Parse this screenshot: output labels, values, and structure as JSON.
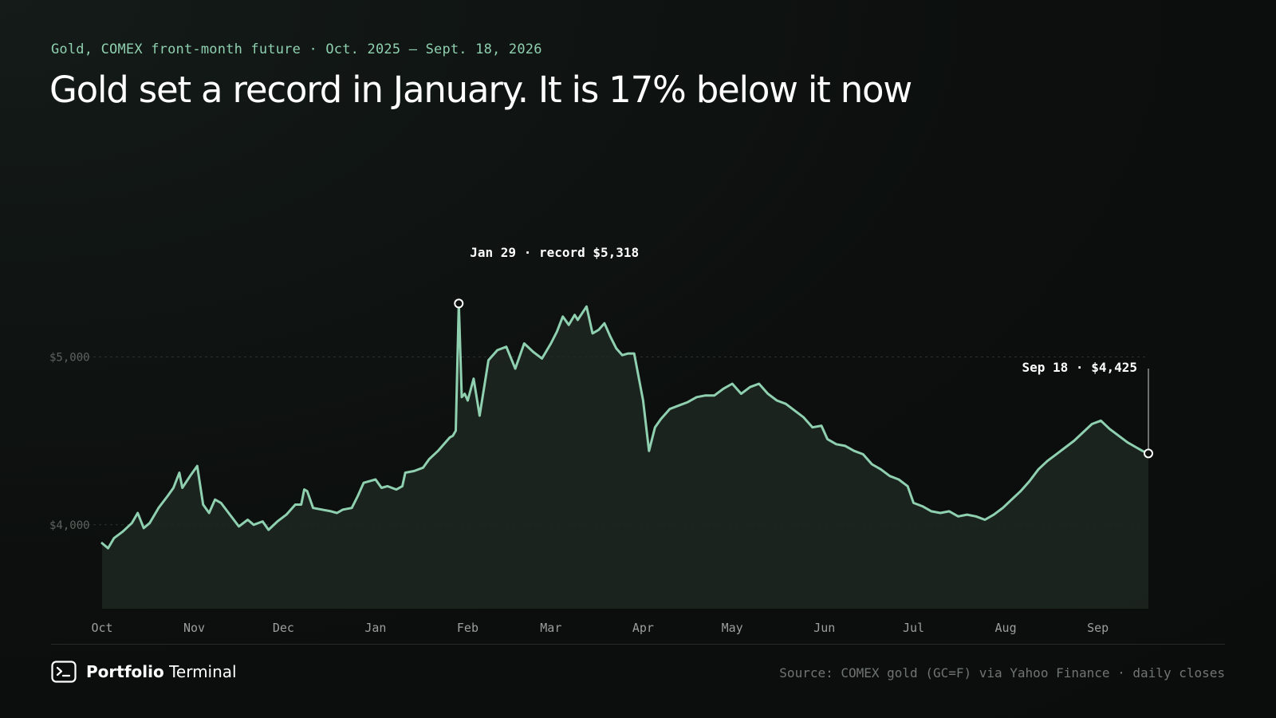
{
  "header": {
    "subtitle": "Gold, COMEX front-month future · Oct. 2025 – Sept. 18, 2026",
    "title": "Gold set a record in January. It is 17% below it now"
  },
  "footer": {
    "brand_strong": "Portfolio",
    "brand_light": "Terminal",
    "brand_icon": "terminal-prompt-icon",
    "source": "Source: COMEX gold (GC=F) via Yahoo Finance · daily closes"
  },
  "colors": {
    "background": "#0c0f0e",
    "line": "#8fd0b0",
    "area_fill": "#1e2722",
    "subtitle": "#8fd0b0",
    "axis_text": "#9a9f9c",
    "y_tick_text": "#5d635f",
    "grid": "#2c3330",
    "annotation_text": "#ffffff"
  },
  "chart_data": {
    "type": "area",
    "title": "Gold set a record in January. It is 17% below it now",
    "subtitle": "Gold, COMEX front-month future · Oct. 2025 – Sept. 18, 2026",
    "xlabel": "",
    "ylabel": "",
    "x_range": [
      "2025-10-01",
      "2026-09-18"
    ],
    "ylim": [
      3500,
      5700
    ],
    "grid": true,
    "legend": "none",
    "x_ticks": [
      {
        "label": "Oct",
        "date": "2025-10-01"
      },
      {
        "label": "Nov",
        "date": "2025-11-01"
      },
      {
        "label": "Dec",
        "date": "2025-12-01"
      },
      {
        "label": "Jan",
        "date": "2026-01-01"
      },
      {
        "label": "Feb",
        "date": "2026-02-01"
      },
      {
        "label": "Mar",
        "date": "2026-03-01"
      },
      {
        "label": "Apr",
        "date": "2026-04-01"
      },
      {
        "label": "May",
        "date": "2026-05-01"
      },
      {
        "label": "Jun",
        "date": "2026-06-01"
      },
      {
        "label": "Jul",
        "date": "2026-07-01"
      },
      {
        "label": "Aug",
        "date": "2026-08-01"
      },
      {
        "label": "Sep",
        "date": "2026-09-01"
      }
    ],
    "y_ticks": [
      {
        "label": "$4,000",
        "value": 4000
      },
      {
        "label": "$5,000",
        "value": 5000
      }
    ],
    "annotations": [
      {
        "date": "2026-01-29",
        "value": 5318,
        "label": "Jan 29 · record $5,318",
        "anchor": "right"
      },
      {
        "date": "2026-09-18",
        "value": 4425,
        "label": "Sep 18 · $4,425",
        "anchor": "left"
      }
    ],
    "series": [
      {
        "points": [
          [
            "2025-10-01",
            3890
          ],
          [
            "2025-10-03",
            3860
          ],
          [
            "2025-10-05",
            3920
          ],
          [
            "2025-10-08",
            3960
          ],
          [
            "2025-10-11",
            4010
          ],
          [
            "2025-10-13",
            4070
          ],
          [
            "2025-10-15",
            3980
          ],
          [
            "2025-10-17",
            4010
          ],
          [
            "2025-10-20",
            4100
          ],
          [
            "2025-10-23",
            4170
          ],
          [
            "2025-10-25",
            4220
          ],
          [
            "2025-10-27",
            4310
          ],
          [
            "2025-10-28",
            4220
          ],
          [
            "2025-10-31",
            4300
          ],
          [
            "2025-11-02",
            4350
          ],
          [
            "2025-11-04",
            4120
          ],
          [
            "2025-11-06",
            4070
          ],
          [
            "2025-11-08",
            4150
          ],
          [
            "2025-11-10",
            4130
          ],
          [
            "2025-11-13",
            4060
          ],
          [
            "2025-11-16",
            3990
          ],
          [
            "2025-11-19",
            4030
          ],
          [
            "2025-11-21",
            4000
          ],
          [
            "2025-11-24",
            4020
          ],
          [
            "2025-11-26",
            3970
          ],
          [
            "2025-11-29",
            4020
          ],
          [
            "2025-12-02",
            4060
          ],
          [
            "2025-12-05",
            4120
          ],
          [
            "2025-12-07",
            4120
          ],
          [
            "2025-12-08",
            4210
          ],
          [
            "2025-12-09",
            4200
          ],
          [
            "2025-12-11",
            4100
          ],
          [
            "2025-12-14",
            4090
          ],
          [
            "2025-12-17",
            4080
          ],
          [
            "2025-12-19",
            4070
          ],
          [
            "2025-12-21",
            4090
          ],
          [
            "2025-12-24",
            4100
          ],
          [
            "2025-12-26",
            4170
          ],
          [
            "2025-12-28",
            4250
          ],
          [
            "2026-01-01",
            4270
          ],
          [
            "2026-01-03",
            4220
          ],
          [
            "2026-01-05",
            4230
          ],
          [
            "2026-01-08",
            4210
          ],
          [
            "2026-01-10",
            4230
          ],
          [
            "2026-01-11",
            4310
          ],
          [
            "2026-01-14",
            4320
          ],
          [
            "2026-01-17",
            4340
          ],
          [
            "2026-01-19",
            4390
          ],
          [
            "2026-01-22",
            4440
          ],
          [
            "2026-01-24",
            4480
          ],
          [
            "2026-01-26",
            4520
          ],
          [
            "2026-01-27",
            4530
          ],
          [
            "2026-01-28",
            4560
          ],
          [
            "2026-01-29",
            5318
          ],
          [
            "2026-01-30",
            4760
          ],
          [
            "2026-01-31",
            4780
          ],
          [
            "2026-02-01",
            4740
          ],
          [
            "2026-02-03",
            4870
          ],
          [
            "2026-02-05",
            4650
          ],
          [
            "2026-02-08",
            4980
          ],
          [
            "2026-02-11",
            5040
          ],
          [
            "2026-02-14",
            5060
          ],
          [
            "2026-02-17",
            4930
          ],
          [
            "2026-02-20",
            5080
          ],
          [
            "2026-02-23",
            5030
          ],
          [
            "2026-02-26",
            4990
          ],
          [
            "2026-03-01",
            5080
          ],
          [
            "2026-03-03",
            5150
          ],
          [
            "2026-03-05",
            5240
          ],
          [
            "2026-03-07",
            5190
          ],
          [
            "2026-03-09",
            5250
          ],
          [
            "2026-03-10",
            5220
          ],
          [
            "2026-03-13",
            5300
          ],
          [
            "2026-03-15",
            5140
          ],
          [
            "2026-03-17",
            5160
          ],
          [
            "2026-03-19",
            5200
          ],
          [
            "2026-03-21",
            5120
          ],
          [
            "2026-03-23",
            5050
          ],
          [
            "2026-03-25",
            5010
          ],
          [
            "2026-03-27",
            5020
          ],
          [
            "2026-03-29",
            5020
          ],
          [
            "2026-04-01",
            4740
          ],
          [
            "2026-04-03",
            4440
          ],
          [
            "2026-04-05",
            4580
          ],
          [
            "2026-04-07",
            4630
          ],
          [
            "2026-04-10",
            4690
          ],
          [
            "2026-04-13",
            4710
          ],
          [
            "2026-04-16",
            4730
          ],
          [
            "2026-04-19",
            4760
          ],
          [
            "2026-04-22",
            4770
          ],
          [
            "2026-04-25",
            4770
          ],
          [
            "2026-04-28",
            4810
          ],
          [
            "2026-05-01",
            4840
          ],
          [
            "2026-05-04",
            4780
          ],
          [
            "2026-05-07",
            4820
          ],
          [
            "2026-05-10",
            4840
          ],
          [
            "2026-05-13",
            4780
          ],
          [
            "2026-05-16",
            4740
          ],
          [
            "2026-05-19",
            4720
          ],
          [
            "2026-05-22",
            4680
          ],
          [
            "2026-05-25",
            4640
          ],
          [
            "2026-05-28",
            4580
          ],
          [
            "2026-05-31",
            4590
          ],
          [
            "2026-06-02",
            4510
          ],
          [
            "2026-06-05",
            4480
          ],
          [
            "2026-06-08",
            4470
          ],
          [
            "2026-06-11",
            4440
          ],
          [
            "2026-06-14",
            4420
          ],
          [
            "2026-06-17",
            4360
          ],
          [
            "2026-06-20",
            4330
          ],
          [
            "2026-06-23",
            4290
          ],
          [
            "2026-06-26",
            4270
          ],
          [
            "2026-06-29",
            4230
          ],
          [
            "2026-07-01",
            4130
          ],
          [
            "2026-07-04",
            4110
          ],
          [
            "2026-07-07",
            4080
          ],
          [
            "2026-07-10",
            4070
          ],
          [
            "2026-07-13",
            4080
          ],
          [
            "2026-07-16",
            4050
          ],
          [
            "2026-07-19",
            4060
          ],
          [
            "2026-07-22",
            4050
          ],
          [
            "2026-07-25",
            4030
          ],
          [
            "2026-07-28",
            4060
          ],
          [
            "2026-07-31",
            4100
          ],
          [
            "2026-08-03",
            4150
          ],
          [
            "2026-08-06",
            4200
          ],
          [
            "2026-08-09",
            4260
          ],
          [
            "2026-08-12",
            4330
          ],
          [
            "2026-08-15",
            4380
          ],
          [
            "2026-08-18",
            4420
          ],
          [
            "2026-08-21",
            4460
          ],
          [
            "2026-08-24",
            4500
          ],
          [
            "2026-08-27",
            4550
          ],
          [
            "2026-08-30",
            4600
          ],
          [
            "2026-09-02",
            4620
          ],
          [
            "2026-09-05",
            4570
          ],
          [
            "2026-09-08",
            4530
          ],
          [
            "2026-09-11",
            4490
          ],
          [
            "2026-09-14",
            4460
          ],
          [
            "2026-09-16",
            4440
          ],
          [
            "2026-09-18",
            4425
          ]
        ]
      }
    ]
  }
}
